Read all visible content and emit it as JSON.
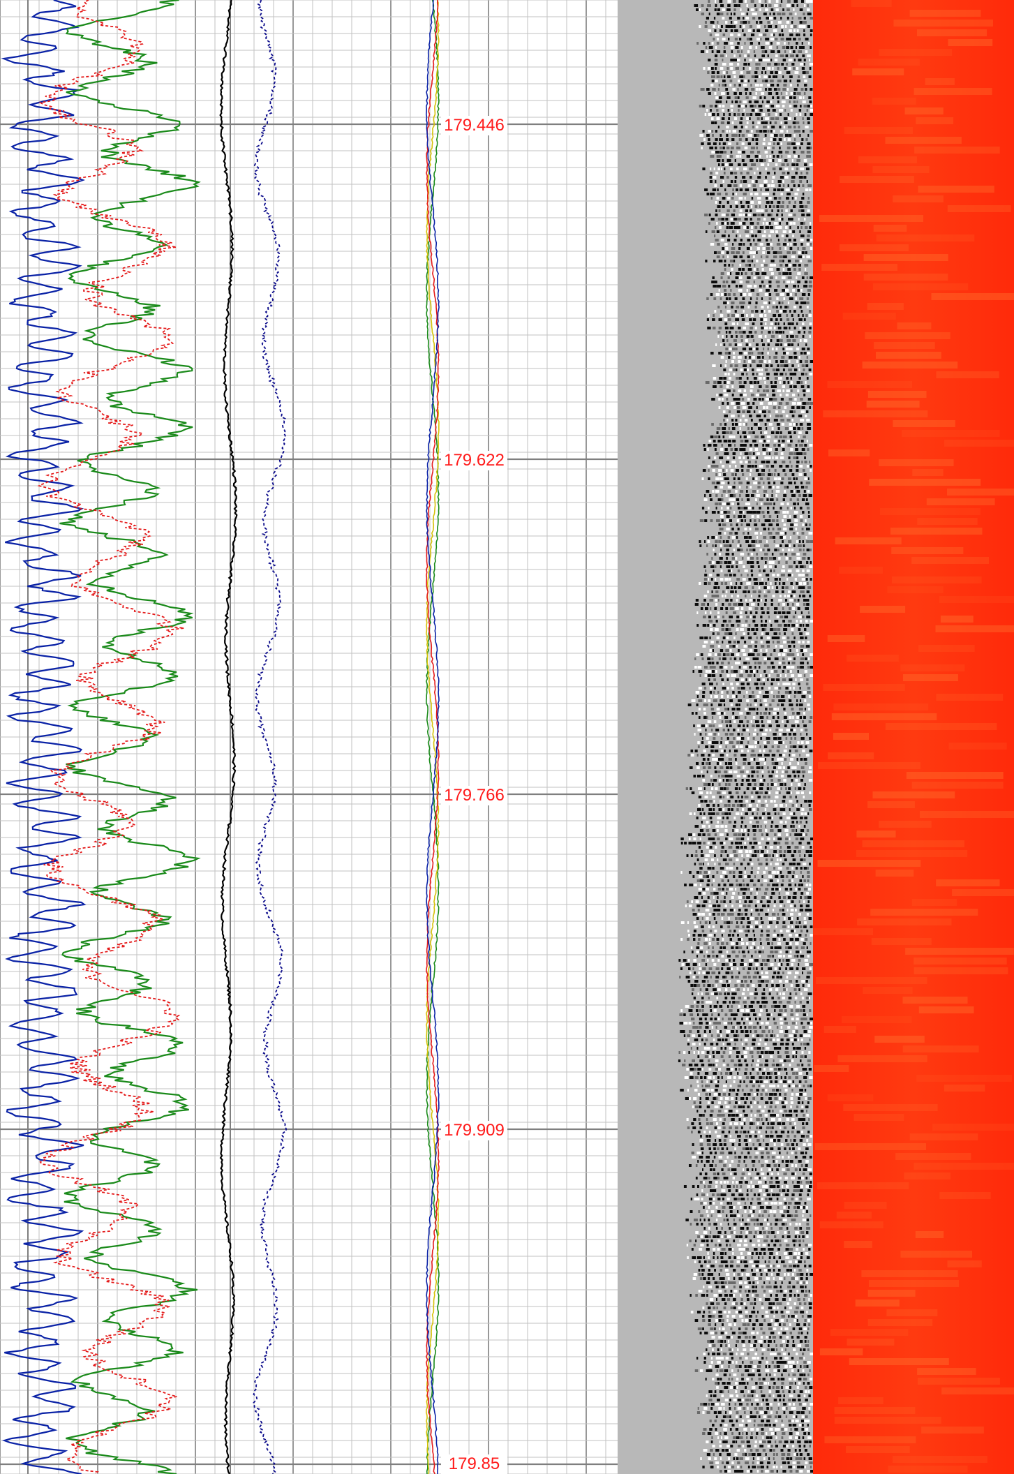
{
  "colors": {
    "grid_minor": "#c2c2c2",
    "grid_major": "#7f7f7f",
    "depth_text": "#ff1a1a",
    "gamma_curve": "#0a22a6",
    "resistivity_curve": "#1a8a1a",
    "porosity_curve": "#e41a1a",
    "caliper_curve": "#000000",
    "sonic_curve": "#0a0a8a",
    "image_background": "#b8b8b8",
    "image_dark": "#0c0c0c",
    "heatmap_base": "#ff2a0a",
    "heatmap_light": "#ff6a2a"
  },
  "depth_track": {
    "labels": [
      "179.446",
      "179.622",
      "179.766",
      "179.909",
      "179.85"
    ]
  },
  "chart_data": [
    {
      "type": "line",
      "track": "curve-track",
      "series": [
        {
          "id": "gamma",
          "style": "solid",
          "color": "#0a22a6",
          "min": 0.02,
          "max": 0.9,
          "wavelength": 5
        },
        {
          "id": "resistivity",
          "style": "solid",
          "color": "#1a8a1a",
          "min": 0.6,
          "max": 2.1,
          "wavelength": 14
        },
        {
          "id": "porosity",
          "style": "dashed",
          "color": "#e41a1a",
          "min": 0.35,
          "max": 1.95,
          "wavelength": 22
        },
        {
          "id": "caliper",
          "style": "solid",
          "color": "#000000",
          "min": 2.3,
          "max": 2.48,
          "wavelength": 60
        },
        {
          "id": "sonic",
          "style": "dashed",
          "color": "#0a0a8a",
          "min": 2.65,
          "max": 3.0,
          "wavelength": 40
        }
      ],
      "grid": true
    },
    {
      "type": "line",
      "track": "depth-track",
      "series": [
        {
          "id": "multi-curve-bundle",
          "style": "solid",
          "colors": [
            "#1a8a1a",
            "#d4c20a",
            "#e41a1a",
            "#0a22a6"
          ],
          "min": 4.45,
          "max": 4.6
        }
      ],
      "grid": true
    },
    {
      "type": "heatmap",
      "track": "image-track",
      "description_only": false,
      "palette": [
        "#b8b8b8",
        "#ffffff",
        "#0c0c0c"
      ]
    },
    {
      "type": "heatmap",
      "track": "color-track",
      "palette": [
        "#ff2a0a",
        "#ff4a18",
        "#ff6a2a"
      ]
    }
  ]
}
